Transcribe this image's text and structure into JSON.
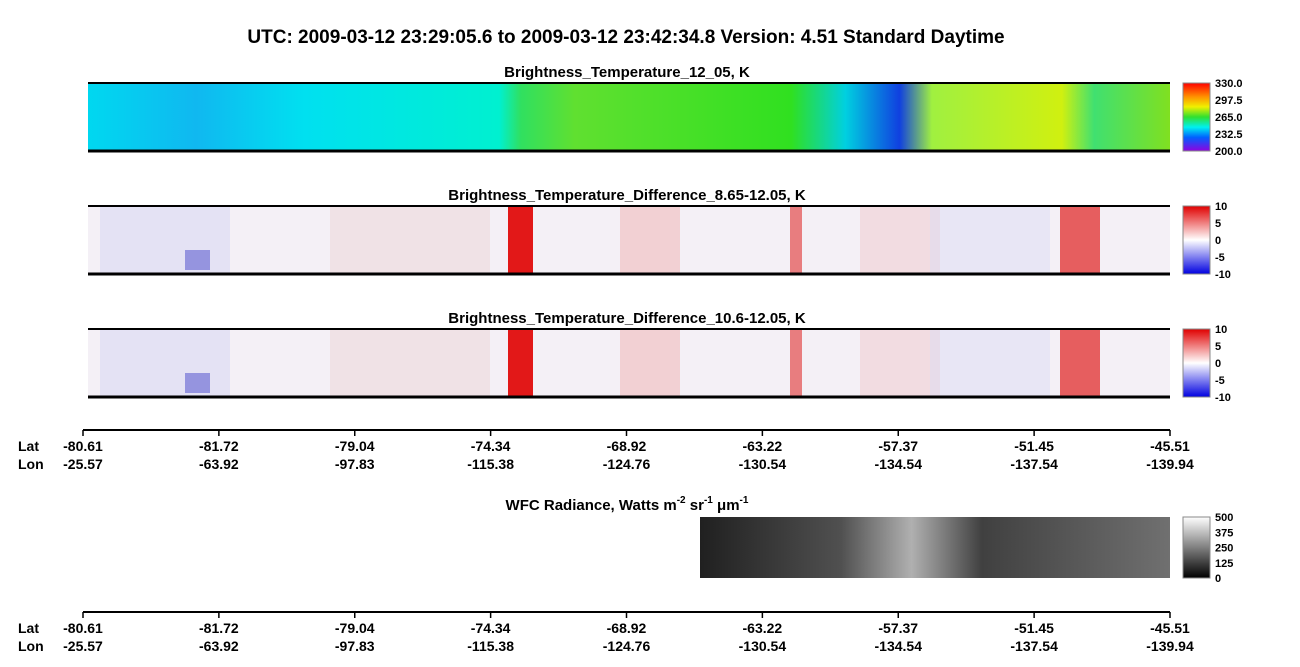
{
  "header": {
    "title": "UTC:  2009-03-12   23:29:05.6  to  2009-03-12   23:42:34.8    Version: 4.51  Standard Daytime"
  },
  "panels": [
    {
      "title": "Brightness_Temperature_12_05, K",
      "colorbar": [
        "330.0",
        "297.5",
        "265.0",
        "232.5",
        "200.0"
      ]
    },
    {
      "title": "Brightness_Temperature_Difference_8.65-12.05, K",
      "colorbar": [
        "10",
        "5",
        "0",
        "-5",
        "-10"
      ]
    },
    {
      "title": "Brightness_Temperature_Difference_10.6-12.05, K",
      "colorbar": [
        "10",
        "5",
        "0",
        "-5",
        "-10"
      ]
    }
  ],
  "wfc": {
    "title_parts": [
      "WFC Radiance, Watts m",
      "-2",
      " sr",
      "-1",
      " μm",
      "-1"
    ],
    "colorbar": [
      "500",
      "375",
      "250",
      "125",
      "0"
    ]
  },
  "axis": {
    "lat_label": "Lat",
    "lon_label": "Lon",
    "lat": [
      "-80.61",
      "-81.72",
      "-79.04",
      "-74.34",
      "-68.92",
      "-63.22",
      "-57.37",
      "-51.45",
      "-45.51"
    ],
    "lon": [
      "-25.57",
      "-63.92",
      "-97.83",
      "-115.38",
      "-124.76",
      "-130.54",
      "-134.54",
      "-137.54",
      "-139.94"
    ]
  }
}
